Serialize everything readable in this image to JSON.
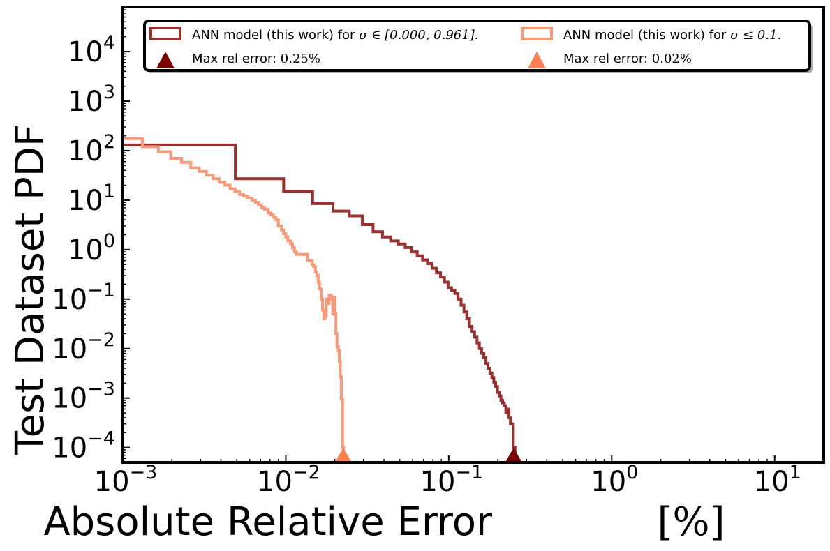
{
  "chart_data": {
    "type": "line",
    "title": "",
    "xlabel": "Absolute Relative Error",
    "xlabel_unit": "[%]",
    "ylabel": "Test Dataset  PDF",
    "xscale": "log",
    "yscale": "log",
    "xlim": [
      0.001,
      20
    ],
    "ylim": [
      5e-05,
      80000
    ],
    "grid": false,
    "legend_position": "top",
    "x_ticks": [
      {
        "value": 0.001,
        "base": "10",
        "exp": "−3"
      },
      {
        "value": 0.01,
        "base": "10",
        "exp": "−2"
      },
      {
        "value": 0.1,
        "base": "10",
        "exp": "−1"
      },
      {
        "value": 1,
        "base": "10",
        "exp": "0"
      },
      {
        "value": 10,
        "base": "10",
        "exp": "1"
      }
    ],
    "y_ticks": [
      {
        "value": 0.0001,
        "base": "10",
        "exp": "−4"
      },
      {
        "value": 0.001,
        "base": "10",
        "exp": "−3"
      },
      {
        "value": 0.01,
        "base": "10",
        "exp": "−2"
      },
      {
        "value": 0.1,
        "base": "10",
        "exp": "−1"
      },
      {
        "value": 1,
        "base": "10",
        "exp": "0"
      },
      {
        "value": 10,
        "base": "10",
        "exp": "1"
      },
      {
        "value": 100,
        "base": "10",
        "exp": "2"
      },
      {
        "value": 1000,
        "base": "10",
        "exp": "3"
      },
      {
        "value": 10000,
        "base": "10",
        "exp": "4"
      }
    ],
    "legend": {
      "series1_prefix": "ANN model (this work) for ",
      "series1_math": "σ ∈ [0.000, 0.961].",
      "series2_prefix": "ANN model (this work) for ",
      "series2_math": "σ ≤ 0.1.",
      "marker1_prefix": "Max rel error: ",
      "marker1_math": "0.25%",
      "marker2_prefix": "Max rel error: ",
      "marker2_math": "0.02%"
    },
    "series": [
      {
        "name": "ANN model (this work) for σ ∈ [0.000, 0.961].",
        "color": "#9a2f2f",
        "type": "step-histogram",
        "edges": [
          0.001,
          0.0049,
          0.0097,
          0.0146,
          0.0195,
          0.0245,
          0.0295,
          0.0343,
          0.0392,
          0.044,
          0.049,
          0.054,
          0.059,
          0.064,
          0.069,
          0.074,
          0.079,
          0.084,
          0.089,
          0.094,
          0.099,
          0.104,
          0.109,
          0.114,
          0.119,
          0.124,
          0.129,
          0.134,
          0.139,
          0.144,
          0.149,
          0.154,
          0.159,
          0.164,
          0.169,
          0.174,
          0.179,
          0.184,
          0.189,
          0.194,
          0.199,
          0.204,
          0.209,
          0.214,
          0.219,
          0.224,
          0.229,
          0.234,
          0.239,
          0.244,
          0.249,
          0.255
        ],
        "values": [
          130,
          27,
          15,
          8.5,
          6,
          4.8,
          3.2,
          2.3,
          1.8,
          1.5,
          1.3,
          1.1,
          0.9,
          0.75,
          0.62,
          0.52,
          0.42,
          0.34,
          0.28,
          0.22,
          0.17,
          0.15,
          0.13,
          0.1,
          0.075,
          0.055,
          0.04,
          0.028,
          0.022,
          0.017,
          0.013,
          0.01,
          0.008,
          0.0065,
          0.005,
          0.004,
          0.0032,
          0.0026,
          0.0021,
          0.0017,
          0.0013,
          0.0011,
          0.0009,
          0.0008,
          0.0007,
          0.0005,
          0.0006,
          0.0004,
          0.0003,
          0.0003,
          0.0001
        ]
      },
      {
        "name": "ANN model (this work) for σ ≤ 0.1.",
        "color": "#f8997a",
        "type": "step-histogram",
        "edges": [
          0.001,
          0.00132,
          0.00165,
          0.00197,
          0.00229,
          0.00261,
          0.00294,
          0.00326,
          0.00358,
          0.0039,
          0.00423,
          0.00455,
          0.00487,
          0.0052,
          0.0055,
          0.0058,
          0.0062,
          0.0065,
          0.0068,
          0.0071,
          0.0074,
          0.0078,
          0.0081,
          0.0084,
          0.0087,
          0.009,
          0.0094,
          0.0097,
          0.01,
          0.0103,
          0.0107,
          0.011,
          0.0113,
          0.0116,
          0.0119,
          0.0123,
          0.0126,
          0.0129,
          0.0132,
          0.0136,
          0.0139,
          0.0142,
          0.0145,
          0.0148,
          0.0152,
          0.0155,
          0.0158,
          0.0161,
          0.0165,
          0.0168,
          0.0171,
          0.0174,
          0.0177,
          0.0181,
          0.0184,
          0.0187,
          0.019,
          0.0194,
          0.0197,
          0.02,
          0.0203,
          0.0206,
          0.021,
          0.0213,
          0.0216,
          0.0219,
          0.0223,
          0.0226
        ],
        "values": [
          175,
          120,
          95,
          70,
          58,
          45,
          38,
          32,
          27,
          23,
          20,
          17,
          15,
          13,
          12,
          11,
          10,
          9,
          8,
          7,
          6.5,
          5.5,
          5,
          4.5,
          4,
          3,
          2.5,
          2.1,
          1.8,
          1.5,
          1.3,
          1.1,
          0.9,
          0.8,
          0.8,
          0.8,
          0.8,
          0.8,
          0.8,
          0.6,
          0.6,
          0.6,
          0.5,
          0.45,
          0.35,
          0.3,
          0.22,
          0.16,
          0.1,
          0.06,
          0.04,
          0.045,
          0.1,
          0.08,
          0.12,
          0.12,
          0.1,
          0.05,
          0.11,
          0.05,
          0.02,
          0.011,
          0.009,
          0.0055,
          0.0027,
          0.00095,
          0.0001
        ]
      }
    ],
    "markers": [
      {
        "name": "Max rel error: 0.25%",
        "x": 0.25,
        "color": "#7b0000",
        "shape": "triangle"
      },
      {
        "name": "Max rel error: 0.02%",
        "x": 0.0225,
        "color": "#ff7f50",
        "shape": "triangle"
      }
    ]
  }
}
